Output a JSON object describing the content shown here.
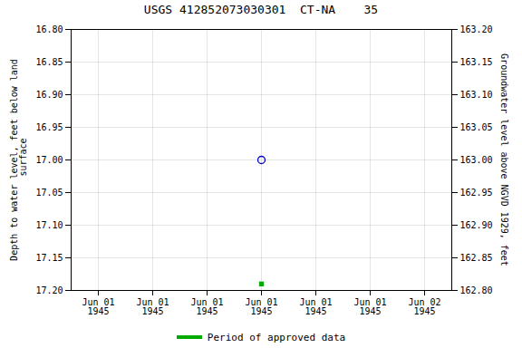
{
  "chart_data": {
    "type": "scatter",
    "title": "USGS 412852073030301  CT-NA    35",
    "ylabel": "Depth to water level, feet below land\n surface",
    "y2label": "Groundwater level above NGVD 1929, feet",
    "categories": [
      "Jun 01\n1945",
      "Jun 01\n1945",
      "Jun 01\n1945",
      "Jun 01\n1945",
      "Jun 01\n1945",
      "Jun 01\n1945",
      "Jun 02\n1945"
    ],
    "series": [
      {
        "values": [
          null,
          null,
          null,
          17.0,
          null,
          null,
          null
        ],
        "color": "#0000cc",
        "marker": "circle"
      },
      {
        "name": "Period of approved data",
        "values": [
          null,
          null,
          null,
          17.19,
          null,
          null,
          null
        ],
        "color": "#00aa00",
        "marker": "square"
      }
    ],
    "ylim": [
      17.2,
      16.8
    ],
    "yticks": [
      {
        "value": 16.8,
        "label": "16.80"
      },
      16.85,
      {
        "value": 16.9,
        "label": "16.90"
      },
      16.95,
      {
        "value": 17,
        "label": "17.00"
      },
      17.05,
      {
        "value": 17.1,
        "label": "17.10"
      },
      17.15,
      {
        "value": 17.2,
        "label": "17.20"
      }
    ],
    "y2lim": [
      162.8,
      163.2
    ],
    "y2ticks": [
      {
        "value": 163.2,
        "label": "163.20"
      },
      163.15,
      {
        "value": 163.1,
        "label": "163.10"
      },
      163.05,
      {
        "value": 163,
        "label": "163.00"
      },
      162.95,
      {
        "value": 162.9,
        "label": "162.90"
      },
      162.85,
      {
        "value": 162.8,
        "label": "162.80"
      }
    ],
    "grid": true,
    "legend": "bottom"
  }
}
